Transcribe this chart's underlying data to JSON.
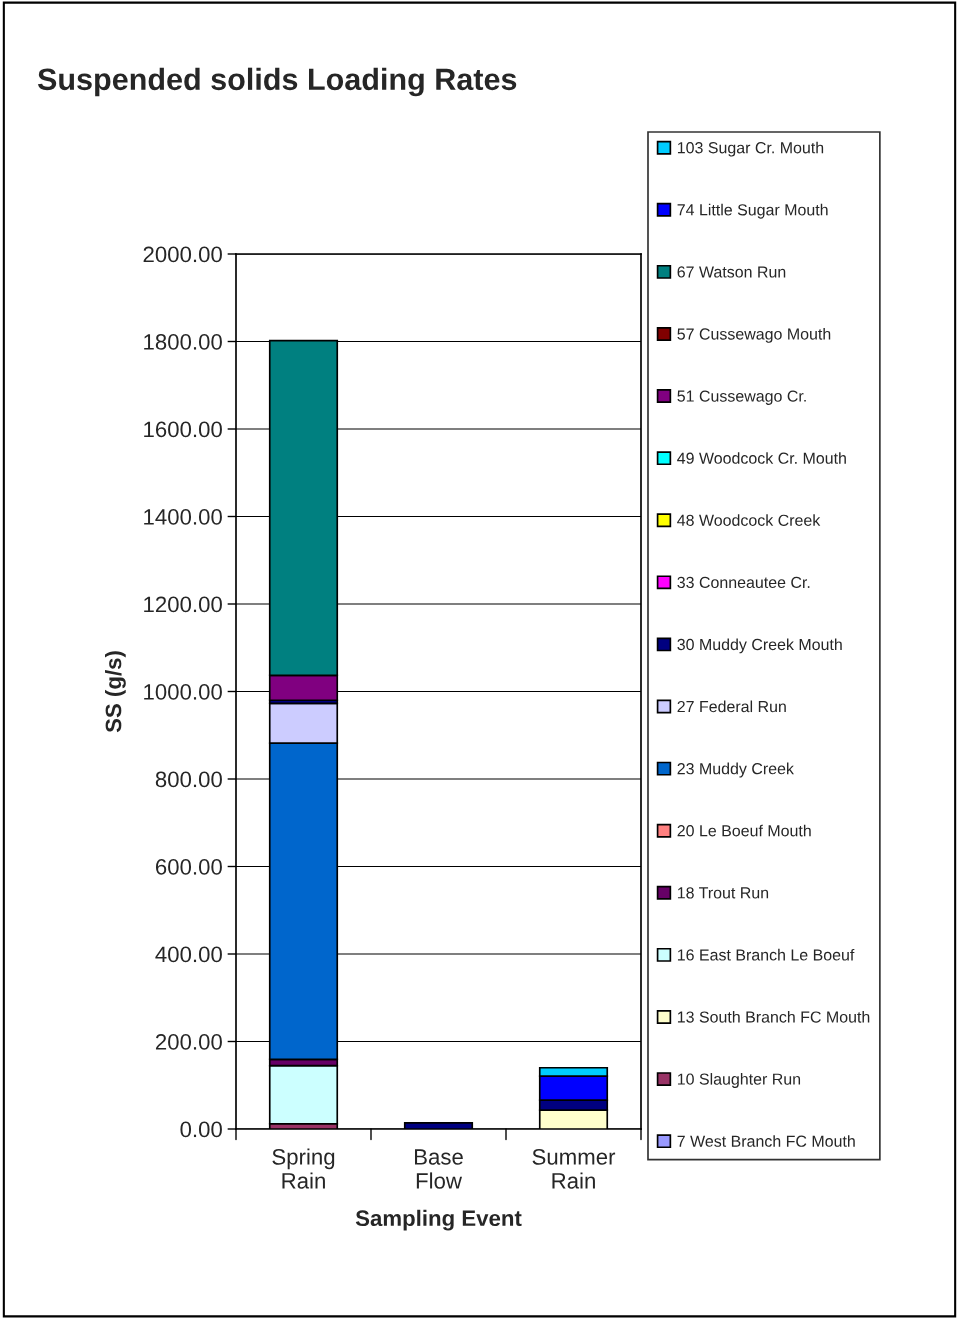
{
  "chart_data": {
    "type": "bar",
    "title": "Suspended solids Loading Rates",
    "xlabel": "Sampling Event",
    "ylabel": "SS (g/s)",
    "categories": [
      "Spring Rain",
      "Base Flow",
      "Summer Rain"
    ],
    "stacked": true,
    "grid": "y",
    "legend": "right",
    "ylim": [
      0,
      2000
    ],
    "yticks": [
      {
        "value": 0,
        "label": "0.00"
      },
      {
        "value": 200,
        "label": "200.00"
      },
      {
        "value": 400,
        "label": "400.00"
      },
      {
        "value": 600,
        "label": "600.00"
      },
      {
        "value": 800,
        "label": "800.00"
      },
      {
        "value": 1000,
        "label": "1000.00"
      },
      {
        "value": 1200,
        "label": "1200.00"
      },
      {
        "value": 1400,
        "label": "1400.00"
      },
      {
        "value": 1600,
        "label": "1600.00"
      },
      {
        "value": 1800,
        "label": "1800.00"
      },
      {
        "value": 2000,
        "label": "2000.00"
      }
    ],
    "series": [
      {
        "name": "7 West Branch FC Mouth",
        "color": "#9999ff",
        "values": [
          null,
          null,
          null
        ]
      },
      {
        "name": "10 Slaughter Run",
        "color": "#993366",
        "values": [
          12,
          null,
          null
        ]
      },
      {
        "name": "13 South Branch FC Mouth",
        "color": "#ffffcc",
        "values": [
          null,
          null,
          43
        ]
      },
      {
        "name": "16 East Branch Le Boeuf",
        "color": "#ccffff",
        "values": [
          133,
          null,
          null
        ]
      },
      {
        "name": "18 Trout Run",
        "color": "#660066",
        "values": [
          14,
          null,
          null
        ]
      },
      {
        "name": "20 Le Boeuf Mouth",
        "color": "#ff8080",
        "values": [
          null,
          null,
          null
        ]
      },
      {
        "name": "23 Muddy Creek",
        "color": "#0066cc",
        "values": [
          723,
          null,
          null
        ]
      },
      {
        "name": "27 Federal Run",
        "color": "#ccccff",
        "values": [
          91,
          null,
          null
        ]
      },
      {
        "name": "30 Muddy Creek Mouth",
        "color": "#000080",
        "values": [
          7,
          14,
          23
        ]
      },
      {
        "name": "33 Conneautee Cr.",
        "color": "#ff00ff",
        "values": [
          null,
          null,
          null
        ]
      },
      {
        "name": "48 Woodcock Creek",
        "color": "#ffff00",
        "values": [
          null,
          null,
          null
        ]
      },
      {
        "name": "49 Woodcock Cr. Mouth",
        "color": "#00ffff",
        "values": [
          null,
          null,
          null
        ]
      },
      {
        "name": "51 Cussewago Cr.",
        "color": "#800080",
        "values": [
          57,
          null,
          null
        ]
      },
      {
        "name": "57 Cussewago Mouth",
        "color": "#800000",
        "values": [
          null,
          null,
          null
        ]
      },
      {
        "name": "67 Watson Run",
        "color": "#008080",
        "values": [
          765,
          null,
          null
        ]
      },
      {
        "name": "74 Little Sugar Mouth",
        "color": "#0000ff",
        "values": [
          null,
          null,
          55
        ]
      },
      {
        "name": "103 Sugar Cr. Mouth",
        "color": "#00ccff",
        "values": [
          null,
          null,
          19
        ]
      }
    ]
  }
}
